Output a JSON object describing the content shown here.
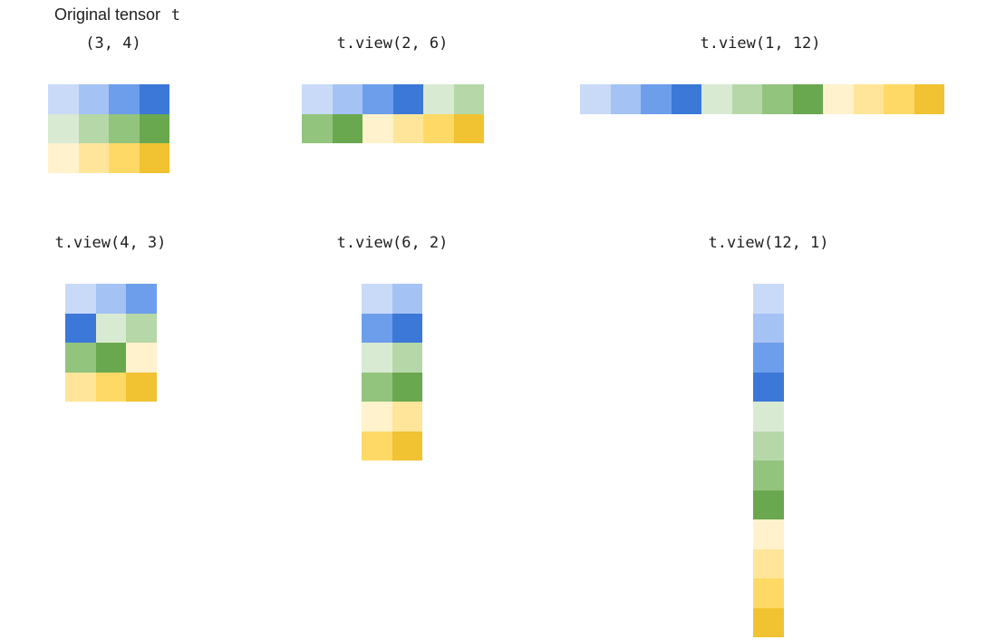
{
  "title": {
    "text": "Original tensor",
    "code": "t"
  },
  "palette": [
    "#c9daf8",
    "#a4c2f4",
    "#6d9eeb",
    "#3c78d8",
    "#d9ead3",
    "#b6d7a8",
    "#93c47d",
    "#6aa84f",
    "#fff2cc",
    "#ffe599",
    "#ffd966",
    "#f1c232"
  ],
  "views": [
    {
      "label": "(3, 4)",
      "rows": 3,
      "cols": 4
    },
    {
      "label": "t.view(2, 6)",
      "rows": 2,
      "cols": 6
    },
    {
      "label": "t.view(1, 12)",
      "rows": 1,
      "cols": 12
    },
    {
      "label": "t.view(4, 3)",
      "rows": 4,
      "cols": 3
    },
    {
      "label": "t.view(6, 2)",
      "rows": 6,
      "cols": 2
    },
    {
      "label": "t.view(12, 1)",
      "rows": 12,
      "cols": 1
    }
  ]
}
